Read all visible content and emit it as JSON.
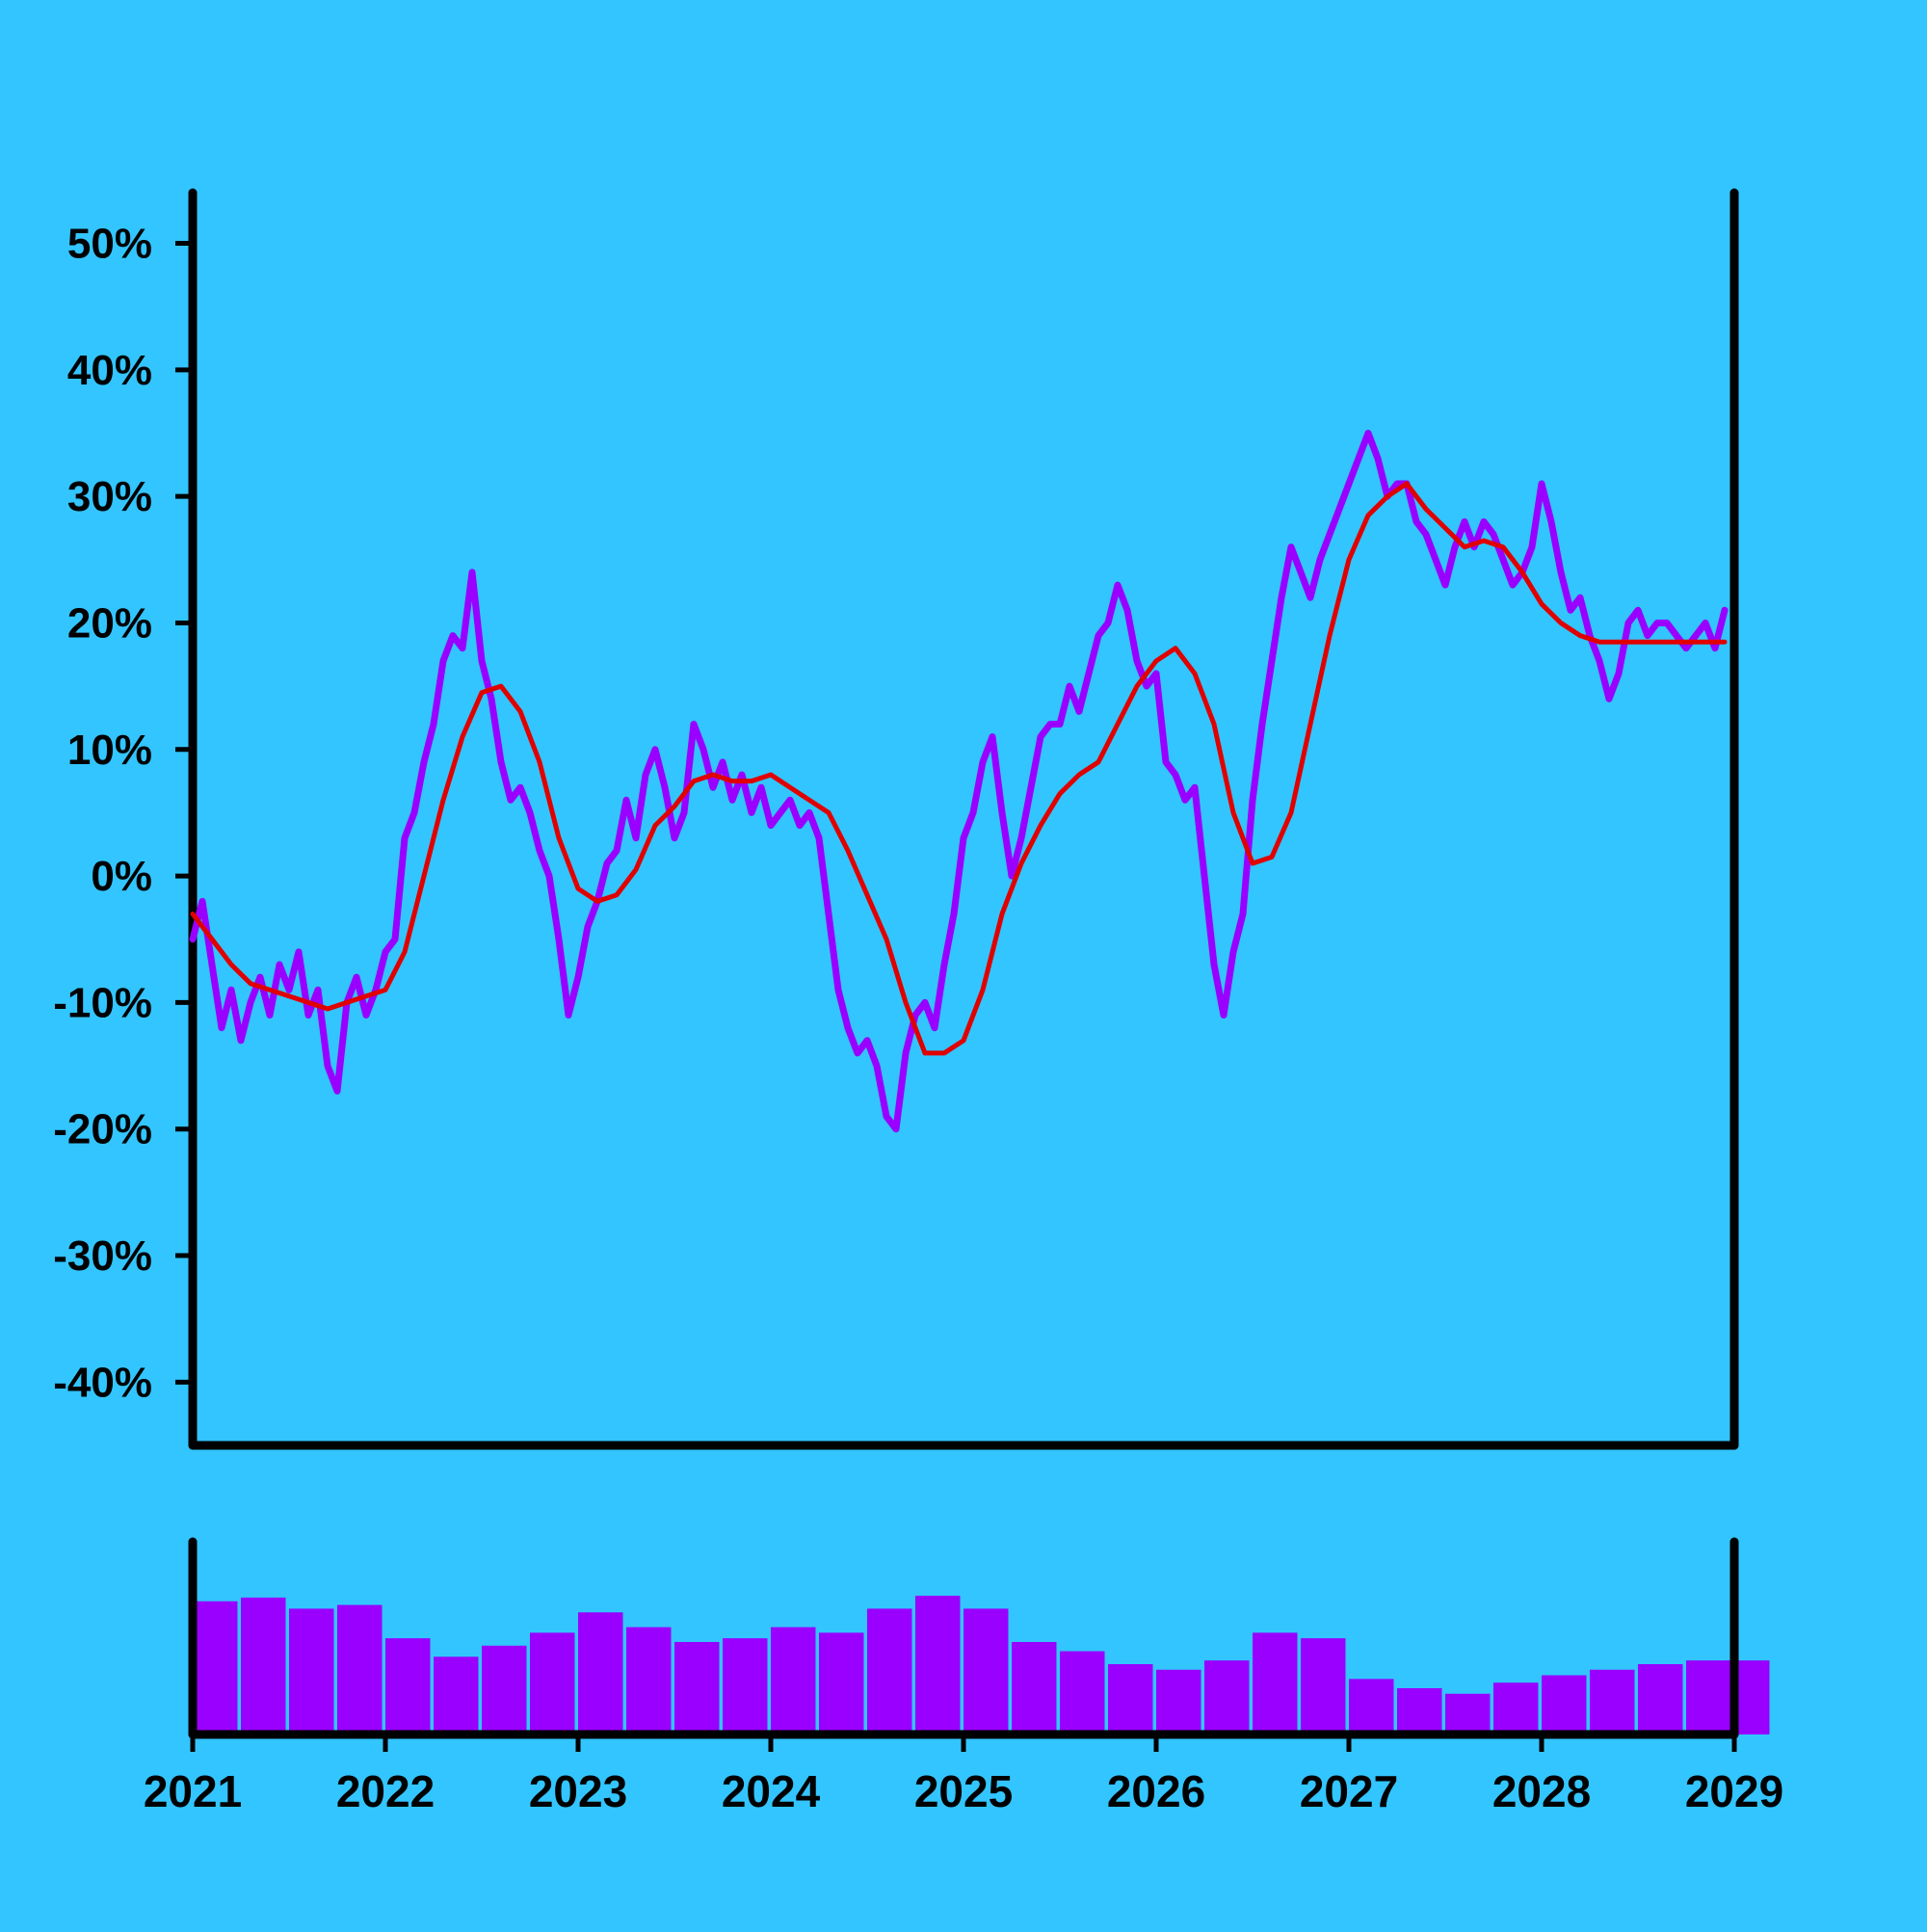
{
  "colors": {
    "background": "#33C5FF",
    "price_line": "#9900FF",
    "moving_average": "#E00000",
    "volume_bars": "#9900FF",
    "axes": "#000000"
  },
  "chart_data": [
    {
      "type": "line",
      "title": "",
      "xlabel": "",
      "ylabel": "",
      "xlim": [
        2021,
        2029
      ],
      "ylim": [
        -45,
        54
      ],
      "x_ticks": [
        "2021",
        "2022",
        "2023",
        "2024",
        "2025",
        "2026",
        "2027",
        "2028",
        "2029"
      ],
      "y_ticks": [
        50,
        40,
        30,
        20,
        10,
        0,
        -10,
        -20,
        -30,
        -40
      ],
      "y_tick_labels": [
        "50%",
        "40%",
        "30%",
        "20%",
        "10%",
        "0%",
        "-10%",
        "-20%",
        "-30%",
        "-40%"
      ],
      "grid": false,
      "legend": "none",
      "series": [
        {
          "style": "jagged line (purple)",
          "x": [
            2021.0,
            2021.05,
            2021.1,
            2021.15,
            2021.2,
            2021.25,
            2021.3,
            2021.35,
            2021.4,
            2021.45,
            2021.5,
            2021.55,
            2021.6,
            2021.65,
            2021.7,
            2021.75,
            2021.8,
            2021.85,
            2021.9,
            2021.95,
            2022.0,
            2022.05,
            2022.1,
            2022.15,
            2022.2,
            2022.25,
            2022.3,
            2022.35,
            2022.4,
            2022.45,
            2022.5,
            2022.55,
            2022.6,
            2022.65,
            2022.7,
            2022.75,
            2022.8,
            2022.85,
            2022.9,
            2022.95,
            2023.0,
            2023.05,
            2023.1,
            2023.15,
            2023.2,
            2023.25,
            2023.3,
            2023.35,
            2023.4,
            2023.45,
            2023.5,
            2023.55,
            2023.6,
            2023.65,
            2023.7,
            2023.75,
            2023.8,
            2023.85,
            2023.9,
            2023.95,
            2024.0,
            2024.05,
            2024.1,
            2024.15,
            2024.2,
            2024.25,
            2024.3,
            2024.35,
            2024.4,
            2024.45,
            2024.5,
            2024.55,
            2024.6,
            2024.65,
            2024.7,
            2024.75,
            2024.8,
            2024.85,
            2024.9,
            2024.95,
            2025.0,
            2025.05,
            2025.1,
            2025.15,
            2025.2,
            2025.25,
            2025.3,
            2025.35,
            2025.4,
            2025.45,
            2025.5,
            2025.55,
            2025.6,
            2025.65,
            2025.7,
            2025.75,
            2025.8,
            2025.85,
            2025.9,
            2025.95,
            2026.0,
            2026.05,
            2026.1,
            2026.15,
            2026.2,
            2026.25,
            2026.3,
            2026.35,
            2026.4,
            2026.45,
            2026.5,
            2026.55,
            2026.6,
            2026.65,
            2026.7,
            2026.75,
            2026.8,
            2026.85,
            2026.9,
            2026.95,
            2027.0,
            2027.05,
            2027.1,
            2027.15,
            2027.2,
            2027.25,
            2027.3,
            2027.35,
            2027.4,
            2027.45,
            2027.5,
            2027.55,
            2027.6,
            2027.65,
            2027.7,
            2027.75,
            2027.8,
            2027.85,
            2027.9,
            2027.95,
            2028.0,
            2028.05,
            2028.1,
            2028.15,
            2028.2,
            2028.25,
            2028.3,
            2028.35,
            2028.4,
            2028.45,
            2028.5,
            2028.55,
            2028.6,
            2028.65,
            2028.7,
            2028.75,
            2028.8,
            2028.85,
            2028.9,
            2028.95
          ],
          "values": [
            -5,
            -2,
            -7,
            -12,
            -9,
            -13,
            -10,
            -8,
            -11,
            -7,
            -9,
            -6,
            -11,
            -9,
            -15,
            -17,
            -10,
            -8,
            -11,
            -9,
            -6,
            -5,
            3,
            5,
            9,
            12,
            17,
            19,
            18,
            24,
            17,
            14,
            9,
            6,
            7,
            5,
            2,
            0,
            -5,
            -11,
            -8,
            -4,
            -2,
            1,
            2,
            6,
            3,
            8,
            10,
            7,
            3,
            5,
            12,
            10,
            7,
            9,
            6,
            8,
            5,
            7,
            4,
            5,
            6,
            4,
            5,
            3,
            -3,
            -9,
            -12,
            -14,
            -13,
            -15,
            -19,
            -20,
            -14,
            -11,
            -10,
            -12,
            -7,
            -3,
            3,
            5,
            9,
            11,
            5,
            0,
            3,
            7,
            11,
            12,
            12,
            15,
            13,
            16,
            19,
            20,
            23,
            21,
            17,
            15,
            16,
            9,
            8,
            6,
            7,
            0,
            -7,
            -11,
            -6,
            -3,
            6,
            12,
            17,
            22,
            26,
            24,
            22,
            25,
            27,
            29,
            31,
            33,
            35,
            33,
            30,
            31,
            31,
            28,
            27,
            25,
            23,
            26,
            28,
            26,
            28,
            27,
            25,
            23,
            24,
            26,
            31,
            28,
            24,
            21,
            22,
            19,
            17,
            14,
            16,
            20,
            21,
            19,
            20,
            20,
            19,
            18,
            19,
            20,
            18,
            21
          ]
        },
        {
          "style": "smooth line (red)",
          "x": [
            2021.0,
            2021.1,
            2021.2,
            2021.3,
            2021.4,
            2021.5,
            2021.6,
            2021.7,
            2021.8,
            2021.9,
            2022.0,
            2022.1,
            2022.2,
            2022.3,
            2022.4,
            2022.5,
            2022.6,
            2022.7,
            2022.8,
            2022.9,
            2023.0,
            2023.1,
            2023.2,
            2023.3,
            2023.4,
            2023.5,
            2023.6,
            2023.7,
            2023.8,
            2023.9,
            2024.0,
            2024.1,
            2024.2,
            2024.3,
            2024.4,
            2024.5,
            2024.6,
            2024.7,
            2024.8,
            2024.9,
            2025.0,
            2025.1,
            2025.2,
            2025.3,
            2025.4,
            2025.5,
            2025.6,
            2025.7,
            2025.8,
            2025.9,
            2026.0,
            2026.1,
            2026.2,
            2026.3,
            2026.4,
            2026.5,
            2026.6,
            2026.7,
            2026.8,
            2026.9,
            2027.0,
            2027.1,
            2027.2,
            2027.3,
            2027.4,
            2027.5,
            2027.6,
            2027.7,
            2027.8,
            2027.9,
            2028.0,
            2028.1,
            2028.2,
            2028.3,
            2028.4,
            2028.5,
            2028.6,
            2028.7,
            2028.8,
            2028.9,
            2028.95
          ],
          "values": [
            -3,
            -5,
            -7,
            -8.5,
            -9,
            -9.5,
            -10,
            -10.5,
            -10,
            -9.5,
            -9,
            -6,
            0,
            6,
            11,
            14.5,
            15,
            13,
            9,
            3,
            -1,
            -2,
            -1.5,
            0.5,
            4,
            5.5,
            7.5,
            8,
            7.5,
            7.5,
            8,
            7,
            6,
            5,
            2,
            -1.5,
            -5,
            -10,
            -14,
            -14,
            -13,
            -9,
            -3,
            1,
            4,
            6.5,
            8,
            9,
            12,
            15,
            17,
            18,
            16,
            12,
            5,
            1,
            1.5,
            5,
            12,
            19,
            25,
            28.5,
            30,
            31,
            29,
            27.5,
            26,
            26.5,
            26,
            24,
            21.5,
            20,
            19,
            18.5,
            18.5,
            18.5,
            18.5,
            18.5,
            18.5,
            18.5,
            18.5
          ]
        }
      ]
    },
    {
      "type": "bar",
      "title": "",
      "xlim": [
        2021,
        2029
      ],
      "x_ticks": [
        "2021",
        "2022",
        "2023",
        "2024",
        "2025",
        "2026",
        "2027",
        "2028",
        "2029"
      ],
      "grid": false,
      "legend": "none",
      "series": [
        {
          "style": "volume bars (purple)",
          "x": [
            2021.0,
            2021.25,
            2021.5,
            2021.75,
            2022.0,
            2022.25,
            2022.5,
            2022.75,
            2023.0,
            2023.25,
            2023.5,
            2023.75,
            2024.0,
            2024.25,
            2024.5,
            2024.75,
            2025.0,
            2025.25,
            2025.5,
            2025.75,
            2026.0,
            2026.25,
            2026.5,
            2026.75,
            2027.0,
            2027.25,
            2027.5,
            2027.75,
            2028.0,
            2028.25,
            2028.5,
            2028.75,
            2028.95
          ],
          "values": [
            0.72,
            0.74,
            0.68,
            0.7,
            0.52,
            0.42,
            0.48,
            0.55,
            0.66,
            0.58,
            0.5,
            0.52,
            0.58,
            0.55,
            0.68,
            0.75,
            0.68,
            0.5,
            0.45,
            0.38,
            0.35,
            0.4,
            0.55,
            0.52,
            0.3,
            0.25,
            0.22,
            0.28,
            0.32,
            0.35,
            0.38,
            0.4,
            0.4
          ]
        }
      ]
    }
  ]
}
